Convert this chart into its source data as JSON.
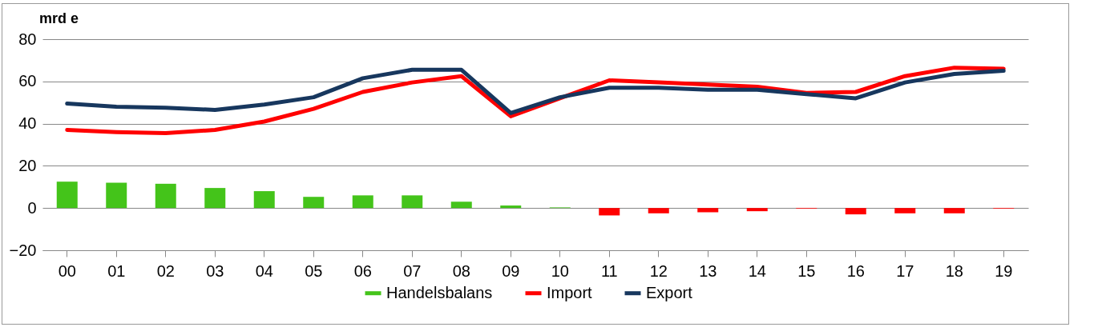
{
  "chart_data": {
    "type": "bar",
    "ylabel": "mrd e",
    "categories": [
      "00",
      "01",
      "02",
      "03",
      "04",
      "05",
      "06",
      "07",
      "08",
      "09",
      "10",
      "11",
      "12",
      "13",
      "14",
      "15",
      "16",
      "17",
      "18",
      "19"
    ],
    "series": [
      {
        "name": "Handelsbalans",
        "color": "#44c41a",
        "colors": [
          "#44c41a",
          "#44c41a",
          "#44c41a",
          "#44c41a",
          "#44c41a",
          "#44c41a",
          "#44c41a",
          "#44c41a",
          "#44c41a",
          "#44c41a",
          "#44c41a",
          "#ff0000",
          "#ff0000",
          "#ff0000",
          "#ff0000",
          "#ff0000",
          "#ff0000",
          "#ff0000",
          "#ff0000",
          "#ff0000"
        ],
        "values": [
          12.5,
          12,
          11.5,
          9.5,
          8,
          5.3,
          6,
          6,
          3,
          1.2,
          0.3,
          -3.5,
          -2.5,
          -2,
          -1.5,
          -0.3,
          -3,
          -2.5,
          -2.5,
          -0.3
        ]
      },
      {
        "name": "Import",
        "type": "line",
        "color": "#ff0000",
        "values": [
          37,
          36,
          35.5,
          37,
          41,
          47,
          55,
          59.5,
          62.5,
          43.5,
          52,
          60.5,
          59.5,
          58.5,
          57.5,
          54.5,
          55,
          62.5,
          66.5,
          66
        ]
      },
      {
        "name": "Export",
        "type": "line",
        "color": "#17375e",
        "values": [
          49.5,
          48,
          47.5,
          46.5,
          49,
          52.5,
          61.5,
          65.5,
          65.5,
          45,
          52.5,
          57,
          57,
          56,
          56,
          54,
          52,
          59.5,
          63.5,
          65
        ]
      }
    ],
    "ylim": [
      -20,
      80
    ],
    "yticks": [
      -20,
      0,
      20,
      40,
      60,
      80
    ],
    "grid": "y",
    "legend": "bottom"
  }
}
